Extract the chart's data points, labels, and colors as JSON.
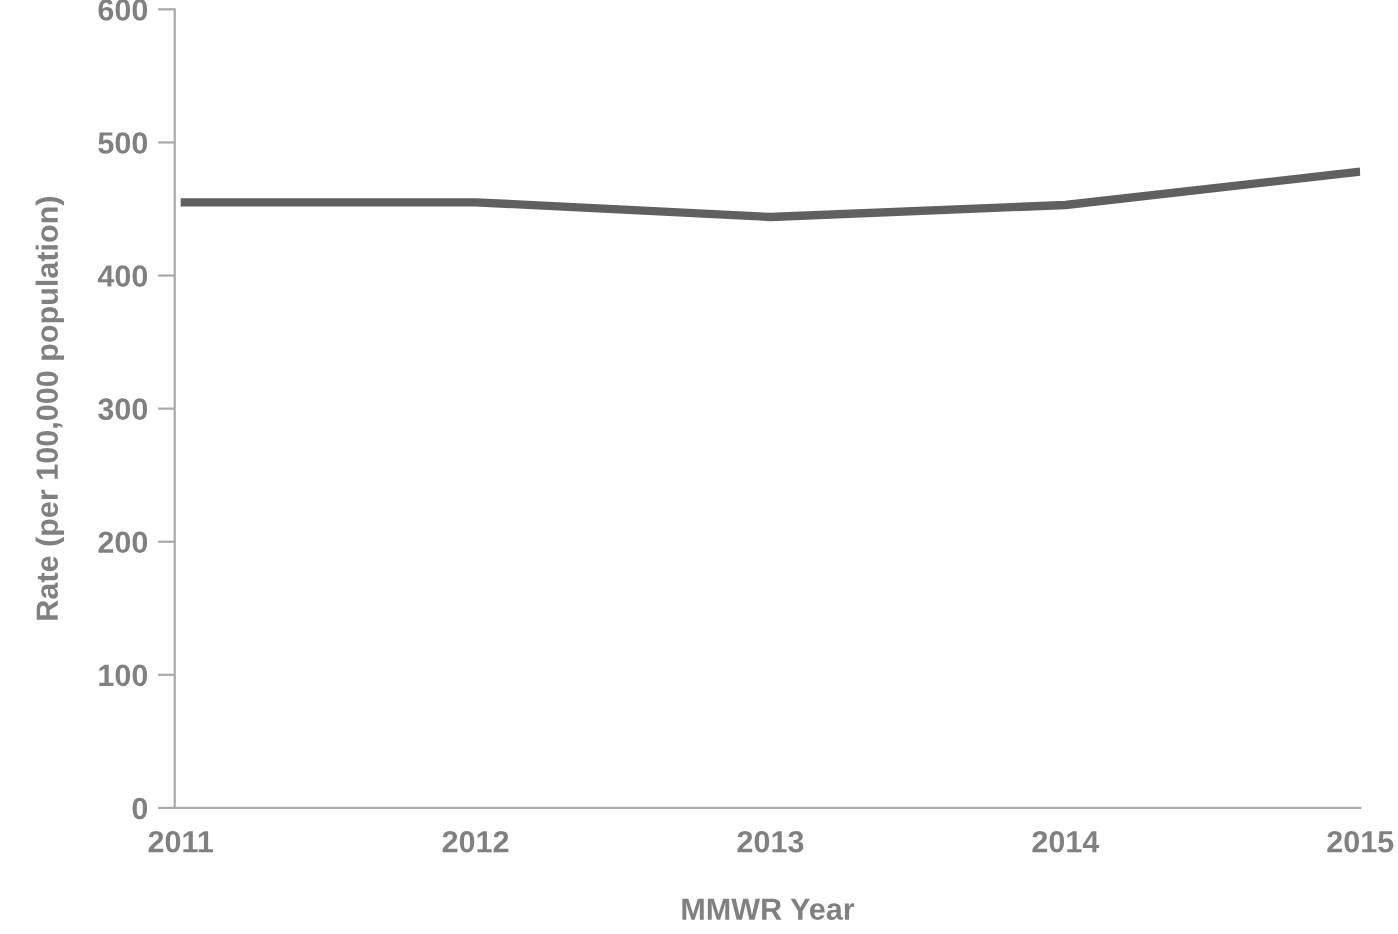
{
  "chart_data": {
    "type": "line",
    "xlabel": "MMWR Year",
    "ylabel": "Rate (per 100,000 population)",
    "categories": [
      "2011",
      "2012",
      "2013",
      "2014",
      "2015"
    ],
    "series": [
      {
        "color": "#606060",
        "values": [
          455,
          455,
          444,
          453,
          478
        ]
      }
    ],
    "ylim": [
      0,
      600
    ],
    "yticks": [
      0,
      100,
      200,
      300,
      400,
      500,
      600
    ],
    "grid": false,
    "legend": false
  }
}
